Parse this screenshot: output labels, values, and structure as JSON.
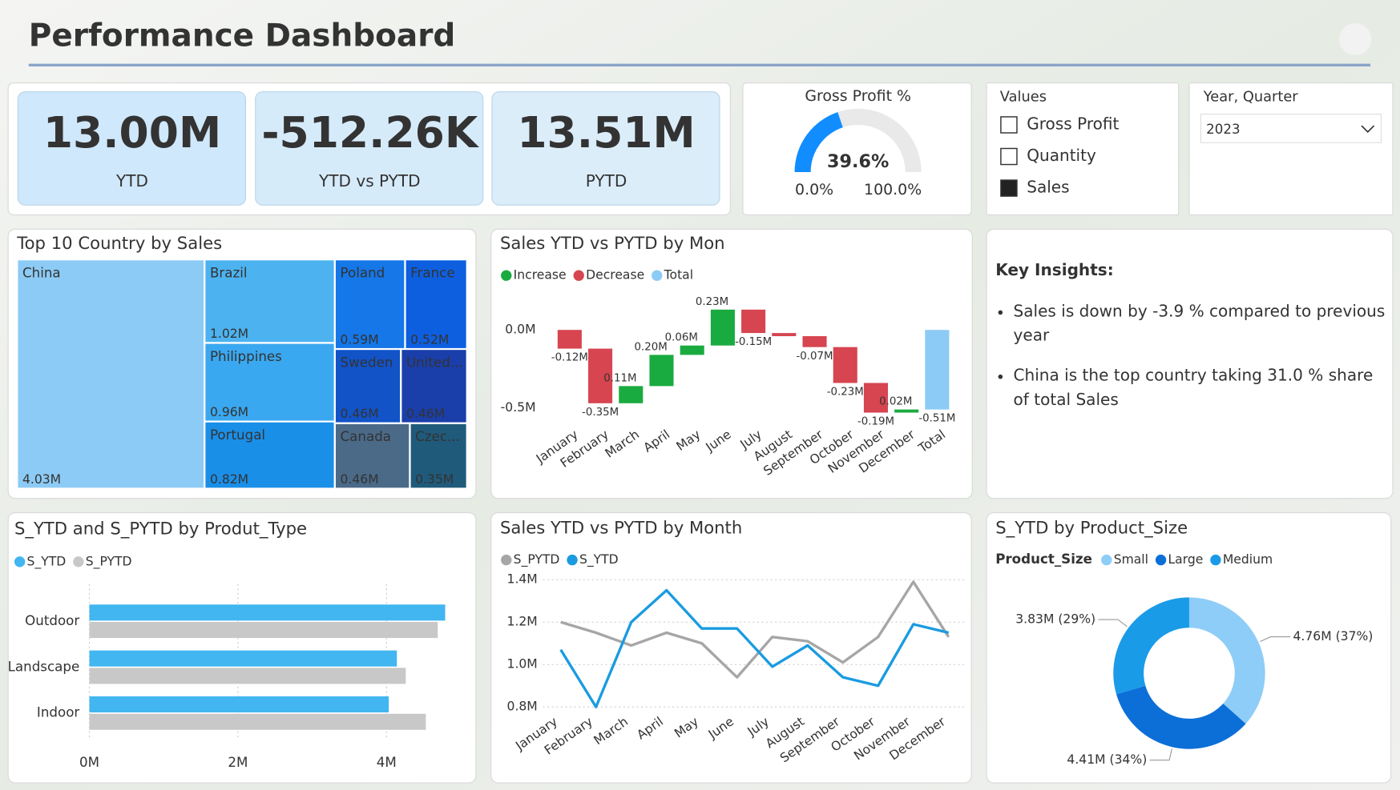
{
  "header": {
    "title": "Performance Dashboard"
  },
  "kpis": [
    {
      "value": "13.00M",
      "label": "YTD",
      "color": "#333333",
      "background": "#cfe8fb"
    },
    {
      "value": "-512.26K",
      "label": "YTD vs PYTD",
      "color": "#e0475a",
      "background": "#d6ebfa"
    },
    {
      "value": "13.51M",
      "label": "PYTD",
      "color": "#333333",
      "background": "#dcedfa"
    }
  ],
  "slicers": {
    "values": {
      "title": "Values",
      "items": [
        {
          "label": "Gross Profit",
          "checked": false
        },
        {
          "label": "Quantity",
          "checked": false
        },
        {
          "label": "Sales",
          "checked": true
        }
      ]
    },
    "period": {
      "title": "Year, Quarter",
      "selected": "2023"
    }
  },
  "insights": {
    "title": "Key Insights:",
    "bullets": [
      "Sales is down by -3.9 % compared to previous year",
      "China is the top country taking 31.0 % share of total Sales"
    ]
  },
  "chart_data": [
    {
      "type": "gauge",
      "title": "Gross Profit %",
      "value": 39.6,
      "value_label": "39.6%",
      "min": {
        "value": 0,
        "label": "0.0%"
      },
      "max": {
        "value": 100,
        "label": "100.0%"
      },
      "color": "#118dff"
    },
    {
      "type": "treemap",
      "title": "Top 10 Country by Sales",
      "categories": [
        "China",
        "Brazil",
        "Philippines",
        "Portugal",
        "Poland",
        "France",
        "Sweden",
        "United...",
        "Canada",
        "Czec..."
      ],
      "values": [
        4.03,
        1.02,
        0.96,
        0.82,
        0.59,
        0.52,
        0.46,
        0.46,
        0.46,
        0.35
      ],
      "value_labels": [
        "4.03M",
        "1.02M",
        "0.96M",
        "0.82M",
        "0.59M",
        "0.52M",
        "0.46M",
        "0.46M",
        "0.46M",
        "0.35M"
      ],
      "colors": [
        "#8ccbf5",
        "#4cb3f0",
        "#3aa8f0",
        "#1a8fe8",
        "#1577e8",
        "#0e5fe0",
        "#1253c8",
        "#1a3faa",
        "#4a6a88",
        "#1f5a7a"
      ]
    },
    {
      "type": "waterfall",
      "title": "Sales YTD vs PYTD by Mon",
      "legend": [
        {
          "name": "Increase",
          "color": "#1aab40"
        },
        {
          "name": "Decrease",
          "color": "#d64550"
        },
        {
          "name": "Total",
          "color": "#8ccbf5"
        }
      ],
      "categories": [
        "January",
        "February",
        "March",
        "April",
        "May",
        "June",
        "July",
        "August",
        "September",
        "October",
        "November",
        "December",
        "Total"
      ],
      "values": [
        -0.12,
        -0.35,
        0.11,
        0.2,
        0.06,
        0.23,
        -0.15,
        -0.02,
        -0.07,
        -0.23,
        -0.19,
        0.02,
        -0.51
      ],
      "value_labels": [
        "-0.12M",
        "-0.35M",
        "0.11M",
        "0.20M",
        "0.06M",
        "0.23M",
        "-0.15M",
        null,
        "-0.07M",
        "-0.23M",
        "-0.19M",
        "0.02M",
        "-0.51M"
      ],
      "ylim": [
        -0.6,
        0.2
      ],
      "yticks": [
        {
          "value": 0,
          "label": "0.0M"
        },
        {
          "value": -0.5,
          "label": "-0.5M"
        }
      ]
    },
    {
      "type": "hbar",
      "title": "S_YTD and S_PYTD by Produt_Type",
      "categories": [
        "Outdoor",
        "Landscape",
        "Indoor"
      ],
      "series": [
        {
          "name": "S_YTD",
          "color": "#41b6f0",
          "values": [
            4.79,
            4.14,
            4.03
          ]
        },
        {
          "name": "S_PYTD",
          "color": "#c8c8c8",
          "values": [
            4.69,
            4.26,
            4.53
          ]
        }
      ],
      "xlim": [
        0,
        5
      ],
      "xticks": [
        {
          "value": 0,
          "label": "0M"
        },
        {
          "value": 2,
          "label": "2M"
        },
        {
          "value": 4,
          "label": "4M"
        }
      ],
      "grid": true
    },
    {
      "type": "line",
      "title": "Sales YTD vs PYTD by Month",
      "categories": [
        "January",
        "February",
        "March",
        "April",
        "May",
        "June",
        "July",
        "August",
        "September",
        "October",
        "November",
        "December"
      ],
      "series": [
        {
          "name": "S_PYTD",
          "color": "#a6a6a6",
          "values": [
            1.2,
            1.15,
            1.09,
            1.15,
            1.1,
            0.94,
            1.13,
            1.11,
            1.01,
            1.13,
            1.39,
            1.13
          ]
        },
        {
          "name": "S_YTD",
          "color": "#1a9be0",
          "values": [
            1.07,
            0.8,
            1.2,
            1.35,
            1.17,
            1.17,
            0.99,
            1.09,
            0.94,
            0.9,
            1.19,
            1.15
          ]
        }
      ],
      "ylim": [
        0.77,
        1.43
      ],
      "yticks": [
        {
          "value": 0.8,
          "label": "0.8M"
        },
        {
          "value": 1.0,
          "label": "1.0M"
        },
        {
          "value": 1.2,
          "label": "1.2M"
        },
        {
          "value": 1.4,
          "label": "1.4M"
        }
      ],
      "grid": true
    },
    {
      "type": "donut",
      "title": "S_YTD by Product_Size",
      "legend_title": "Product_Size",
      "categories": [
        "Small",
        "Large",
        "Medium"
      ],
      "values": [
        4.76,
        4.41,
        3.83
      ],
      "value_labels": [
        "4.76M (37%)",
        "4.41M (34%)",
        "3.83M (29%)"
      ],
      "colors": [
        "#8ecdf7",
        "#0c6fd8",
        "#1a9be8"
      ]
    }
  ]
}
